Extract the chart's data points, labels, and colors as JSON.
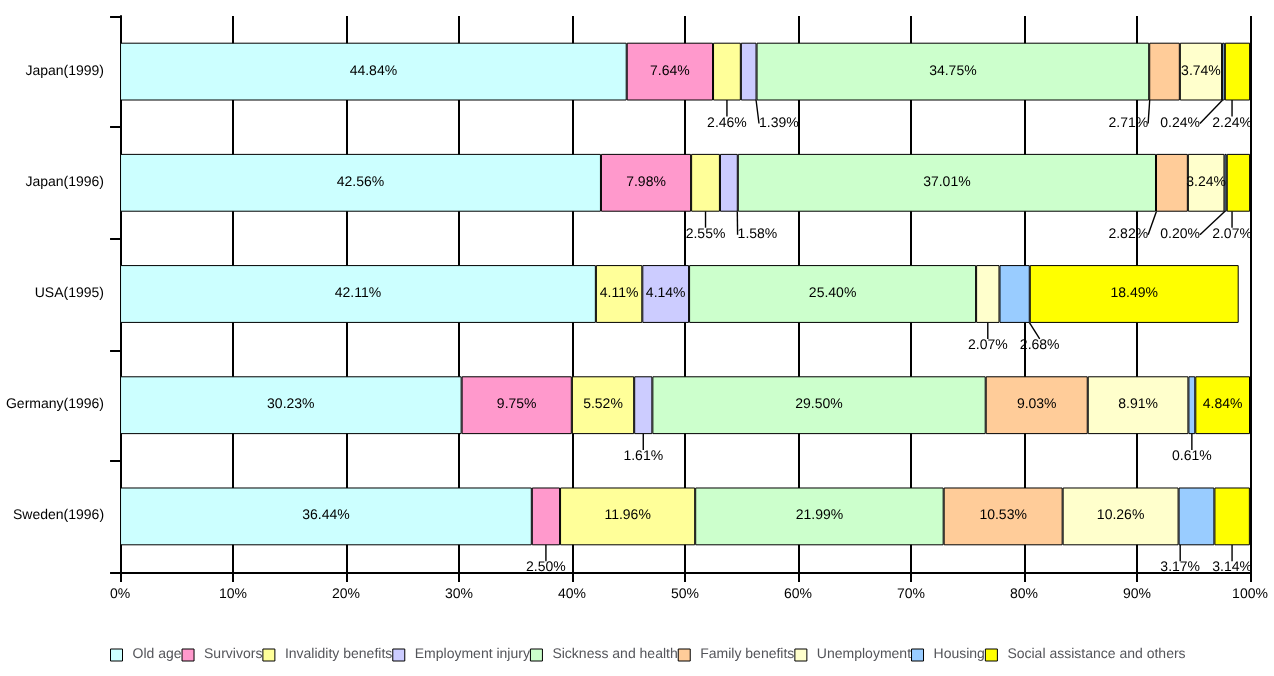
{
  "chart_data": {
    "type": "bar",
    "orientation": "horizontal",
    "stacked": true,
    "categories": [
      "Japan(1999)",
      "Japan(1996)",
      "USA(1995)",
      "Germany(1996)",
      "Sweden(1996)"
    ],
    "series": [
      {
        "name": "Old age",
        "color": "#ccffff",
        "values": [
          44.84,
          42.56,
          42.11,
          30.23,
          36.44
        ],
        "value_labels": [
          "44.84%",
          "42.56%",
          "42.11%",
          "30.23%",
          "36.44%"
        ]
      },
      {
        "name": "Survivors",
        "color": "#ff99cc",
        "values": [
          7.64,
          7.98,
          null,
          9.75,
          2.5
        ],
        "value_labels": [
          "7.64%",
          "7.98%",
          null,
          "9.75%",
          "2.50%"
        ]
      },
      {
        "name": "Invalidity benefits",
        "color": "#ffff99",
        "values": [
          2.46,
          2.55,
          4.11,
          5.52,
          11.96
        ],
        "value_labels": [
          "2.46%",
          "2.55%",
          "4.11%",
          "5.52%",
          "11.96%"
        ]
      },
      {
        "name": "Employment injury",
        "color": "#ccccff",
        "values": [
          1.39,
          1.58,
          4.14,
          1.61,
          null
        ],
        "value_labels": [
          "1.39%",
          "1.58%",
          "4.14%",
          "1.61%",
          null
        ]
      },
      {
        "name": "Sickness and health",
        "color": "#ccffcc",
        "values": [
          34.75,
          37.01,
          25.4,
          29.5,
          21.99
        ],
        "value_labels": [
          "34.75%",
          "37.01%",
          "25.40%",
          "29.50%",
          "21.99%"
        ]
      },
      {
        "name": "Family benefits",
        "color": "#ffcc99",
        "values": [
          2.71,
          2.82,
          null,
          9.03,
          10.53
        ],
        "value_labels": [
          "2.71%",
          "2.82%",
          null,
          "9.03%",
          "10.53%"
        ]
      },
      {
        "name": "Unemployment",
        "color": "#ffffcc",
        "values": [
          3.74,
          3.24,
          2.07,
          8.91,
          10.26
        ],
        "value_labels": [
          "3.74%",
          "3.24%",
          "2.07%",
          "8.91%",
          "10.26%"
        ]
      },
      {
        "name": "Housing",
        "color": "#99ccff",
        "values": [
          0.24,
          0.2,
          2.68,
          0.61,
          3.17
        ],
        "value_labels": [
          "0.24%",
          "0.20%",
          "2.68%",
          "0.61%",
          "3.17%"
        ]
      },
      {
        "name": "Social assistance and others",
        "color": "#ffff00",
        "values": [
          2.24,
          2.07,
          18.49,
          4.84,
          3.14
        ],
        "value_labels": [
          "2.24%",
          "2.07%",
          "18.49%",
          "4.84%",
          "3.14%"
        ]
      }
    ],
    "xlim": [
      0,
      100
    ],
    "xticks": [
      {
        "value": 0,
        "label": "0%"
      },
      {
        "value": 10,
        "label": "10%"
      },
      {
        "value": 20,
        "label": "20%"
      },
      {
        "value": 30,
        "label": "30%"
      },
      {
        "value": 40,
        "label": "40%"
      },
      {
        "value": 50,
        "label": "50%"
      },
      {
        "value": 60,
        "label": "60%"
      },
      {
        "value": 70,
        "label": "70%"
      },
      {
        "value": 80,
        "label": "80%"
      },
      {
        "value": 90,
        "label": "90%"
      },
      {
        "value": 100,
        "label": "100%"
      }
    ],
    "grid": "x",
    "legend": "bottom"
  }
}
